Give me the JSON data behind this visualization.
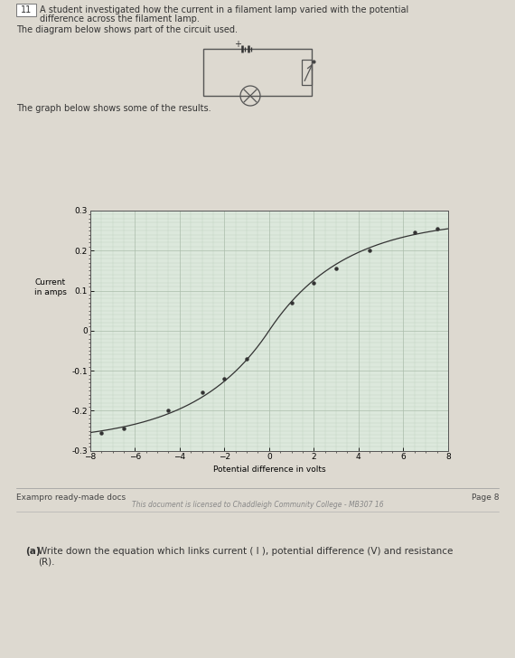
{
  "bg_color": "#ddd9d0",
  "question_number": "11",
  "question_text_line1": "A student investigated how the current in a filament lamp varied with the potential",
  "question_text_line2": "difference across the filament lamp.",
  "circuit_text": "The diagram below shows part of the circuit used.",
  "graph_text": "The graph below shows some of the results.",
  "footer_left": "Exampro ready-made docs",
  "footer_right": "Page 8",
  "footer_license": "This document is licensed to Chaddleigh Community College - MB307 16",
  "part_a_bold": "(a)",
  "part_a_text": "  Write down the equation which links current ( I ), potential difference (V) and resistance",
  "part_a_text2": "      (R).",
  "graph": {
    "xlim": [
      -8,
      8
    ],
    "ylim": [
      -0.3,
      0.3
    ],
    "xticks": [
      -8,
      -6,
      -4,
      -2,
      0,
      2,
      4,
      6,
      8
    ],
    "yticks": [
      -0.3,
      -0.2,
      -0.1,
      0.0,
      0.1,
      0.2,
      0.3
    ],
    "xlabel": "Potential difference in volts",
    "ylabel_line1": "Current",
    "ylabel_line2": "in amps",
    "grid_color": "#aabcaa",
    "curve_color": "#333333",
    "dot_color": "#333333",
    "bg_color": "#dce8dc",
    "data_points_pos": [
      [
        1.0,
        0.07
      ],
      [
        2.0,
        0.12
      ],
      [
        3.0,
        0.155
      ],
      [
        4.5,
        0.2
      ],
      [
        6.5,
        0.245
      ],
      [
        7.5,
        0.255
      ]
    ],
    "data_points_neg": [
      [
        -1.0,
        -0.07
      ],
      [
        -2.0,
        -0.12
      ],
      [
        -3.0,
        -0.155
      ],
      [
        -4.5,
        -0.2
      ],
      [
        -6.5,
        -0.245
      ],
      [
        -7.5,
        -0.255
      ]
    ]
  }
}
